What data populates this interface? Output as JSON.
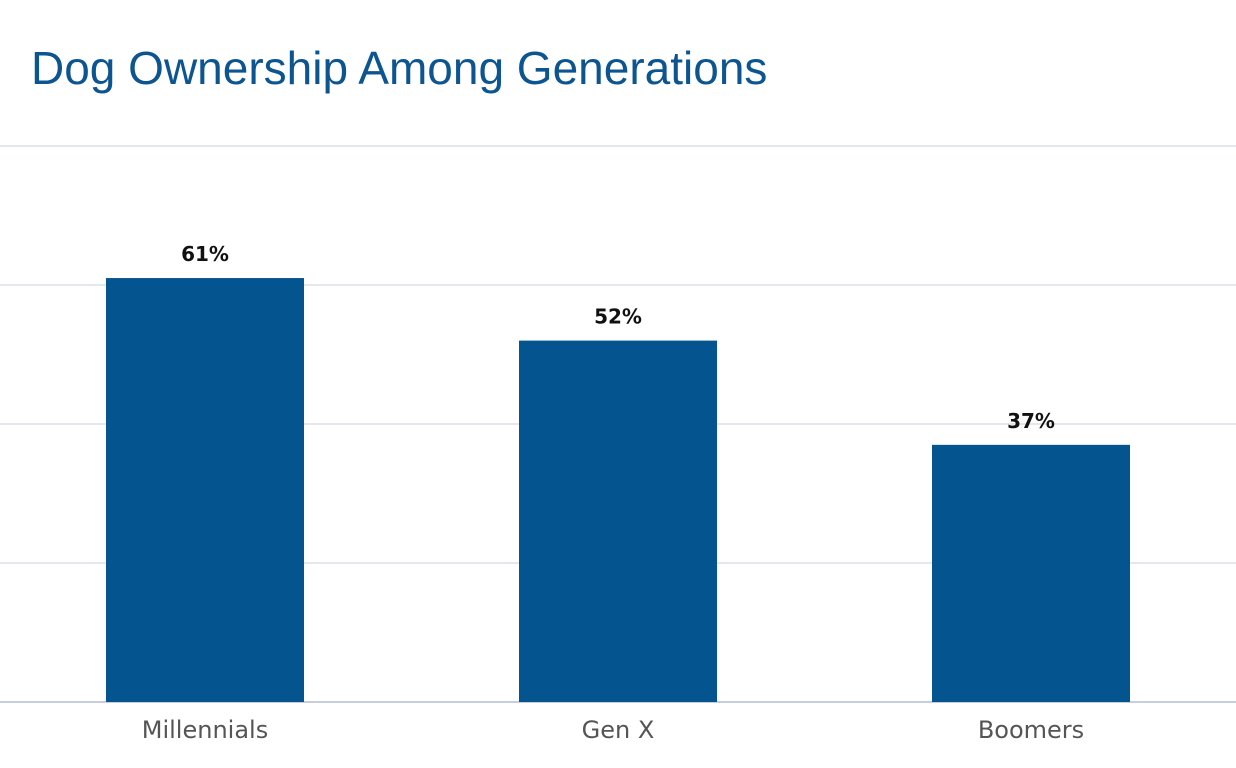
{
  "chart_data": {
    "type": "bar",
    "title": "Dog Ownership Among Generations",
    "categories": [
      "Millennials",
      "Gen X",
      "Boomers"
    ],
    "values": [
      61,
      52,
      37
    ],
    "value_labels": [
      "61%",
      "52%",
      "37%"
    ],
    "unit": "%",
    "ylim": [
      0,
      80
    ],
    "grid": true,
    "y_tick_labels_shown": false,
    "legend": "none",
    "bar_color": "#04558f",
    "title_color": "#0d5590"
  }
}
